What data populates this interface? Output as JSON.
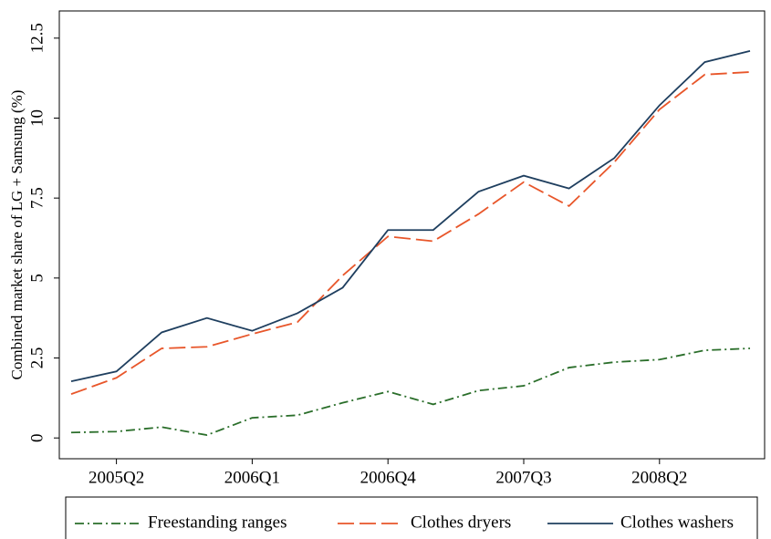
{
  "chart_data": {
    "type": "line",
    "y_label": "Combined market share of LG + Samsung (%)",
    "categories": [
      null,
      "2005Q2",
      null,
      null,
      "2006Q1",
      null,
      null,
      "2006Q4",
      null,
      null,
      "2007Q3",
      null,
      null,
      "2008Q2",
      null,
      null
    ],
    "series": [
      {
        "name": "Freestanding ranges",
        "color": "#2a6e2a",
        "dash": "10,4,2,4",
        "values": [
          0.17,
          0.2,
          0.34,
          0.09,
          0.63,
          0.71,
          1.1,
          1.45,
          1.05,
          1.48,
          1.63,
          2.2,
          2.37,
          2.45,
          2.74,
          2.8
        ]
      },
      {
        "name": "Clothes dryers",
        "color": "#e8562a",
        "dash": "18,6",
        "values": [
          1.37,
          1.88,
          2.8,
          2.85,
          3.25,
          3.62,
          5.08,
          6.3,
          6.15,
          7.0,
          8.0,
          7.25,
          8.62,
          10.27,
          11.36,
          11.44
        ]
      },
      {
        "name": "Clothes washers",
        "color": "#1f3f5f",
        "dash": "",
        "values": [
          1.77,
          2.08,
          3.3,
          3.75,
          3.35,
          3.9,
          4.7,
          6.5,
          6.5,
          7.7,
          8.2,
          7.8,
          8.75,
          10.4,
          11.75,
          12.1
        ]
      }
    ],
    "ylim": [
      -0.65,
      13.35
    ],
    "yticks": [
      0,
      2.5,
      5,
      7.5,
      10,
      12.5
    ],
    "grid": false,
    "legend": "bottom"
  }
}
